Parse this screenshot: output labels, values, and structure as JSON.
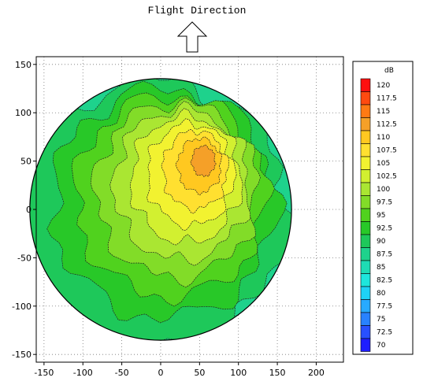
{
  "chart_data": {
    "type": "heatmap",
    "title": "Flight Direction",
    "xlabel": "",
    "ylabel": "",
    "xlim": [
      -160,
      235
    ],
    "ylim": [
      -158,
      158
    ],
    "xticks": [
      -150,
      -100,
      -50,
      0,
      50,
      100,
      150,
      200
    ],
    "yticks": [
      150,
      100,
      50,
      0,
      -50,
      -100,
      -150
    ],
    "grid": true,
    "grid_style": "dotted",
    "domain_shape": "circle",
    "domain_radius": 150,
    "domain_center": [
      0,
      0
    ],
    "legend": {
      "title": "dB",
      "placement": "right",
      "levels": [
        {
          "label": "120",
          "value": 120,
          "color": "#ff1010"
        },
        {
          "label": "117.5",
          "value": 117.5,
          "color": "#ff4a10"
        },
        {
          "label": "115",
          "value": 115,
          "color": "#ff7a14"
        },
        {
          "label": "112.5",
          "value": 112.5,
          "color": "#f5a028"
        },
        {
          "label": "110",
          "value": 110,
          "color": "#ffc820"
        },
        {
          "label": "107.5",
          "value": 107.5,
          "color": "#ffe030"
        },
        {
          "label": "105",
          "value": 105,
          "color": "#f2f230"
        },
        {
          "label": "102.5",
          "value": 102.5,
          "color": "#d2f030"
        },
        {
          "label": "100",
          "value": 100,
          "color": "#aae632"
        },
        {
          "label": "97.5",
          "value": 97.5,
          "color": "#82dc28"
        },
        {
          "label": "95",
          "value": 95,
          "color": "#50d21e"
        },
        {
          "label": "92.5",
          "value": 92.5,
          "color": "#28c828"
        },
        {
          "label": "90",
          "value": 90,
          "color": "#1ec85a"
        },
        {
          "label": "87.5",
          "value": 87.5,
          "color": "#1ed28c"
        },
        {
          "label": "85",
          "value": 85,
          "color": "#1edcb4"
        },
        {
          "label": "82.5",
          "value": 82.5,
          "color": "#1ee6dc"
        },
        {
          "label": "80",
          "value": 80,
          "color": "#1ed2f5"
        },
        {
          "label": "77.5",
          "value": 77.5,
          "color": "#28aaff"
        },
        {
          "label": "75",
          "value": 75,
          "color": "#2882ff"
        },
        {
          "label": "72.5",
          "value": 72.5,
          "color": "#2850ff"
        },
        {
          "label": "70",
          "value": 70,
          "color": "#1e1eff"
        }
      ]
    },
    "hotspot": {
      "x": 55,
      "y": 50,
      "peak_db": 112.5
    },
    "annotations": [
      {
        "text": "Flight Direction",
        "type": "up-arrow",
        "x": 0
      }
    ]
  }
}
